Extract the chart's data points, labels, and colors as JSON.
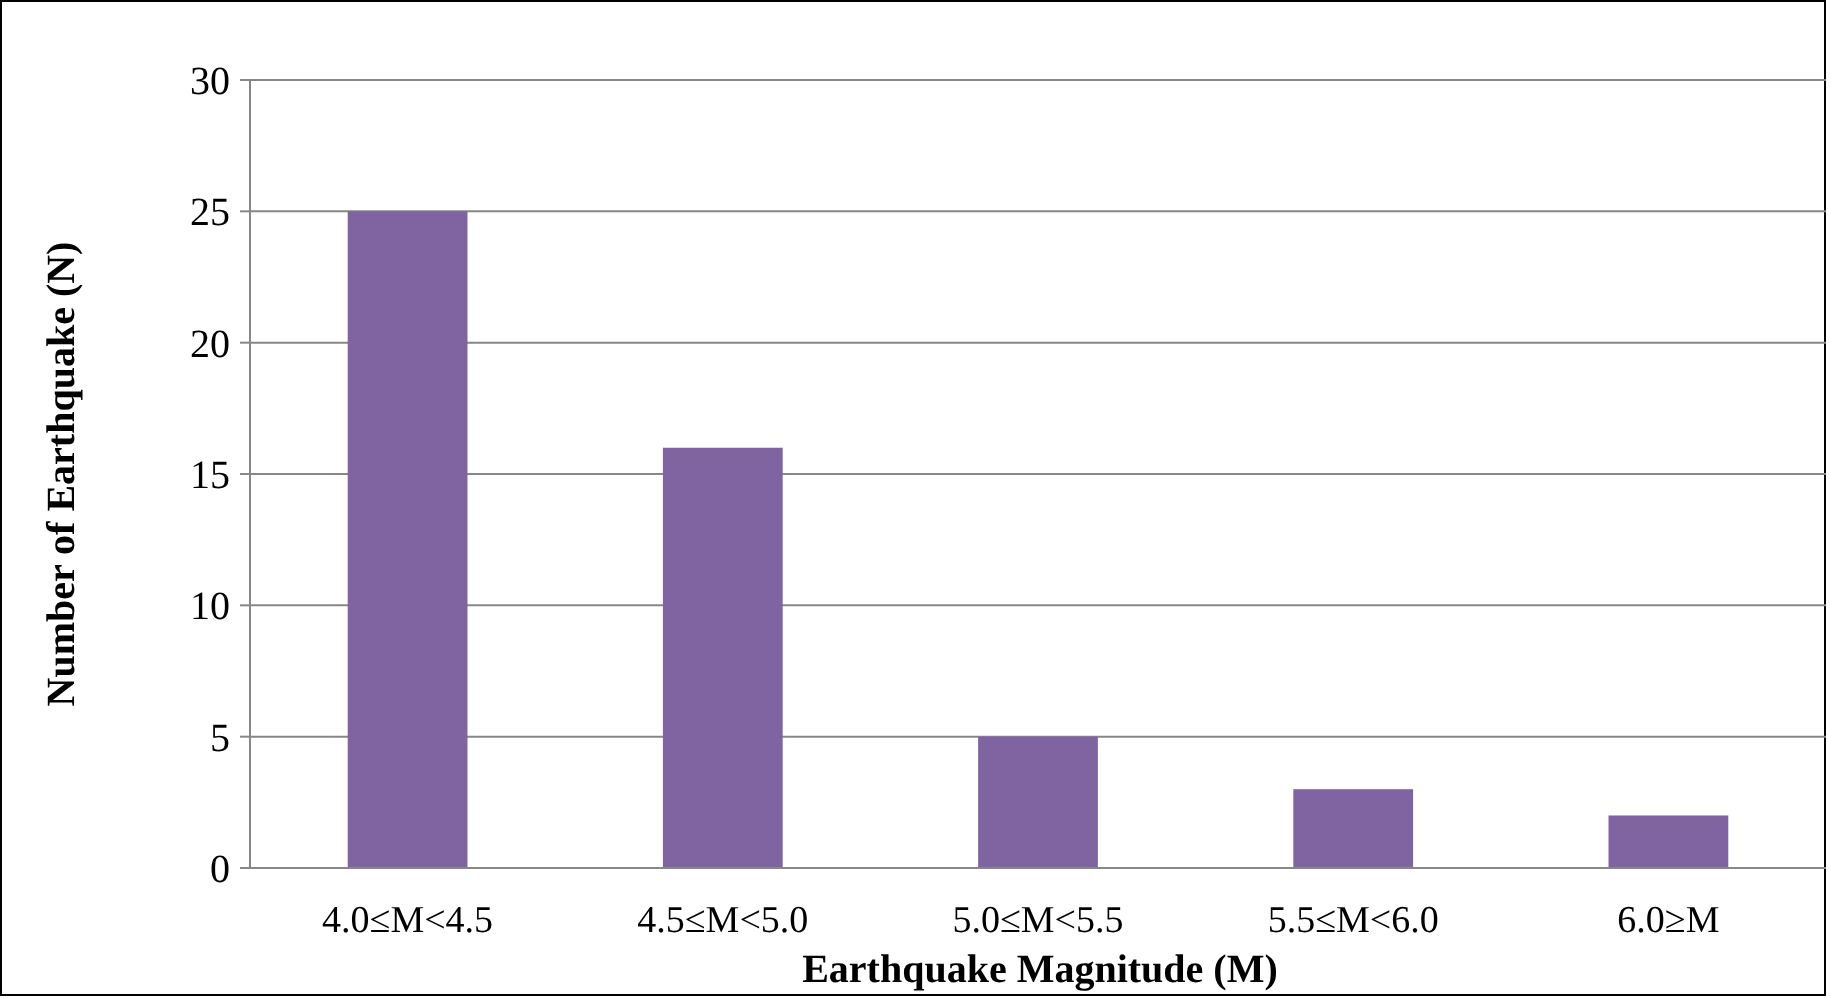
{
  "chart_data": {
    "type": "bar",
    "xlabel": "Earthquake Magnitude (M)",
    "ylabel": "Number of Earthquake (N)",
    "categories": [
      "4.0≤M<4.5",
      "4.5≤M<5.0",
      "5.0≤M<5.5",
      "5.5≤M<6.0",
      "6.0≥M"
    ],
    "values": [
      25,
      16,
      5,
      3,
      2
    ],
    "color": "#8064a2",
    "ylim": [
      0,
      30
    ],
    "yticks": [
      0,
      5,
      10,
      15,
      20,
      25,
      30
    ],
    "grid": "y"
  }
}
